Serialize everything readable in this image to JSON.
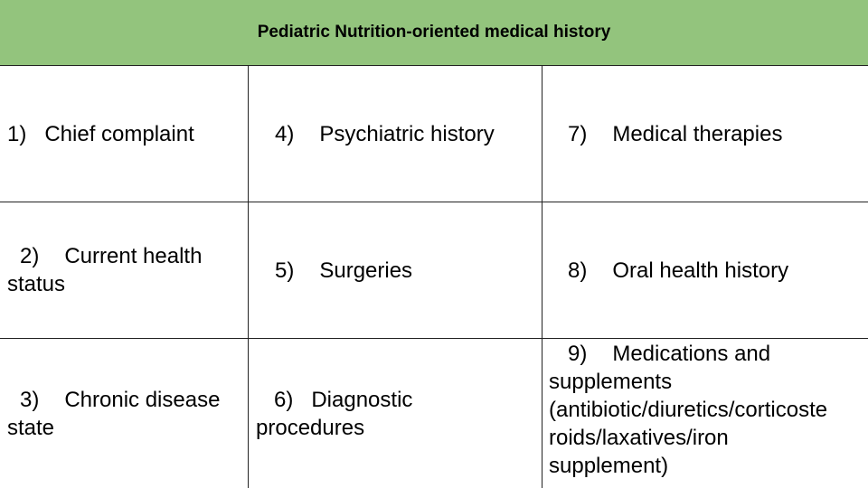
{
  "header": {
    "title": "Pediatric Nutrition-oriented medical history"
  },
  "colors": {
    "header_bg": "#93c47d",
    "border": "#222222"
  },
  "items": [
    {
      "number": "1)",
      "label": "Chief complaint"
    },
    {
      "number": "2)",
      "label": "Current health",
      "label_cont": "status"
    },
    {
      "number": "3)",
      "label": "Chronic disease",
      "label_cont": "state"
    },
    {
      "number": "4)",
      "label": "Psychiatric history"
    },
    {
      "number": "5)",
      "label": "Surgeries"
    },
    {
      "number": "6)",
      "label": "Diagnostic",
      "label_cont": "procedures"
    },
    {
      "number": "7)",
      "label": "Medical therapies"
    },
    {
      "number": "8)",
      "label": "Oral health history"
    },
    {
      "number": "9)",
      "label": "Medications and",
      "lines": [
        "supplements",
        "(antibiotic/diuretics/corticoste",
        "roids/laxatives/iron",
        "supplement)"
      ]
    }
  ]
}
